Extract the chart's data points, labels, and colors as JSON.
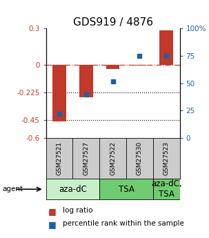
{
  "title": "GDS919 / 4876",
  "samples": [
    "GSM27521",
    "GSM27527",
    "GSM27522",
    "GSM27530",
    "GSM27523"
  ],
  "log_ratio": [
    -0.462,
    -0.265,
    -0.032,
    -0.005,
    0.285
  ],
  "percentile_rank": [
    22,
    40,
    52,
    75,
    75
  ],
  "left_ylim": [
    -0.6,
    0.3
  ],
  "right_ylim": [
    0,
    100
  ],
  "left_yticks": [
    0.3,
    0,
    -0.225,
    -0.45,
    -0.6
  ],
  "right_yticks": [
    100,
    75,
    50,
    25,
    0
  ],
  "left_ytick_labels": [
    "0.3",
    "0",
    "-0.225",
    "-0.45",
    "-0.6"
  ],
  "right_ytick_labels": [
    "100%",
    "75",
    "50",
    "25",
    "0"
  ],
  "dotted_lines": [
    -0.225,
    -0.45
  ],
  "bar_color": "#c0392b",
  "dot_color": "#2060a0",
  "group_defs": [
    {
      "label": "aza-dC",
      "start": 0,
      "end": 2,
      "color": "#c8f0c8"
    },
    {
      "label": "TSA",
      "start": 2,
      "end": 4,
      "color": "#70cc70"
    },
    {
      "label": "aza-dC,\nTSA",
      "start": 4,
      "end": 5,
      "color": "#70cc70"
    }
  ],
  "sample_bg": "#cccccc",
  "agent_label": "agent",
  "legend_bar_label": "log ratio",
  "legend_dot_label": "percentile rank within the sample",
  "bg": "#ffffff",
  "title_fontsize": 11,
  "tick_fontsize": 7.5,
  "sample_fontsize": 6.5,
  "group_fontsize": 8.5,
  "legend_fontsize": 7.5
}
